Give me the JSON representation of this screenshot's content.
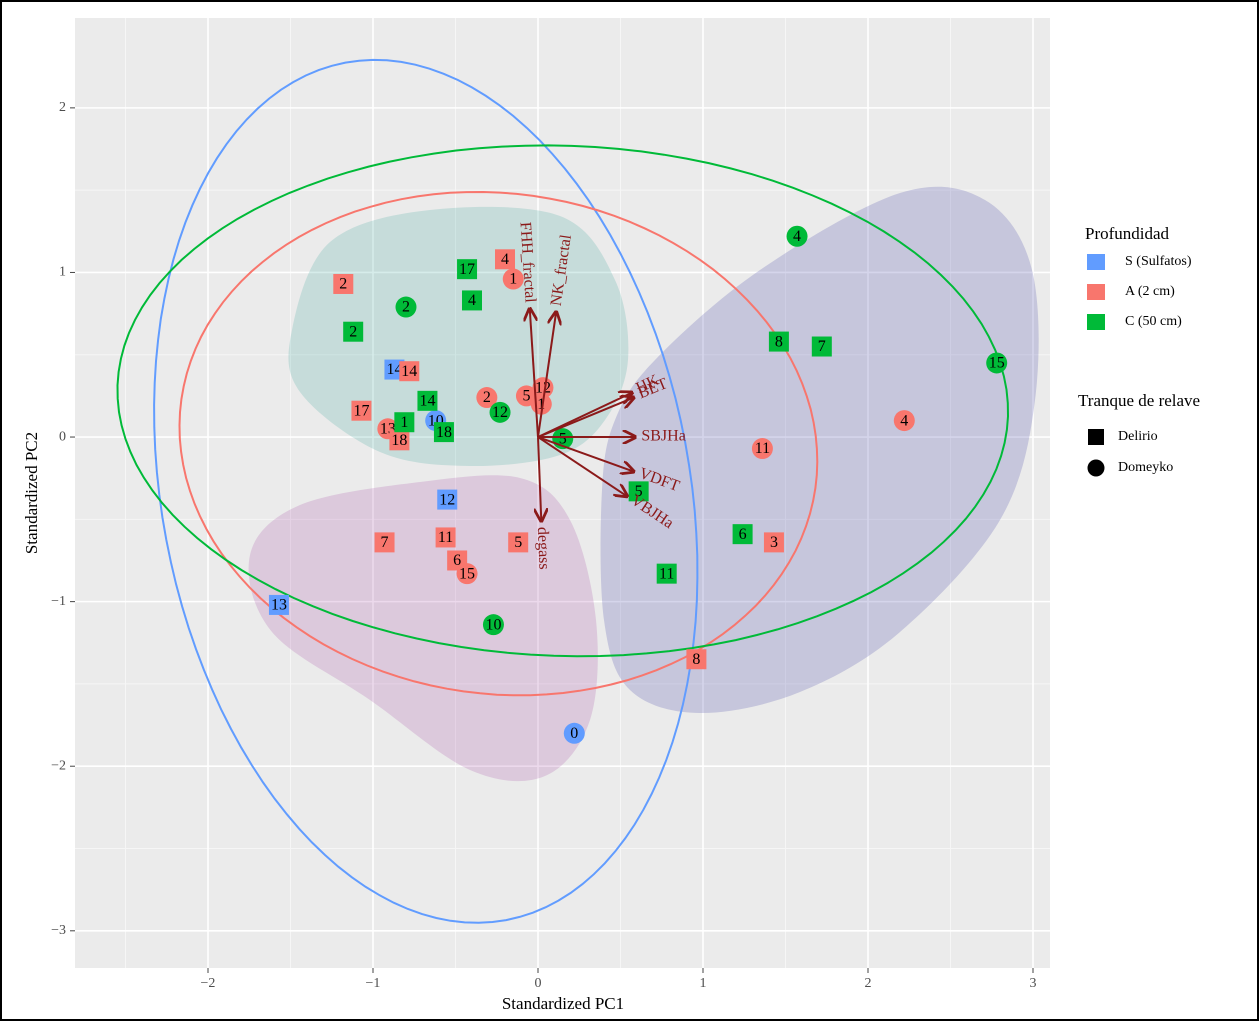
{
  "chart_data": {
    "type": "scatter",
    "xlabel": "Standardized PC1",
    "ylabel": "Standardized PC2",
    "xlim": [
      -2.806,
      3.103
    ],
    "ylim": [
      -3.226,
      2.546
    ],
    "xticks": [
      {
        "value": -2,
        "label": "−2"
      },
      {
        "value": -1,
        "label": "−1"
      },
      0,
      1,
      2,
      3
    ],
    "yticks": [
      {
        "value": -3,
        "label": "−3"
      },
      {
        "value": -2,
        "label": "−2"
      },
      {
        "value": -1,
        "label": "−1"
      },
      0,
      1,
      2
    ],
    "xminorticks": [
      -2.5,
      -1.5,
      -0.5,
      0.5,
      1.5,
      2.5
    ],
    "yminorticks": [
      -2.5,
      -1.5,
      -0.5,
      0.5,
      1.5
    ],
    "grid": true,
    "legend_title": "Profundidad",
    "shape_legend": {
      "title": "Tranque de relave",
      "items": [
        {
          "name": "Delirio",
          "shape": "square"
        },
        {
          "name": "Domeyko",
          "shape": "circle"
        }
      ]
    },
    "series": [
      {
        "name": "S (Sulfatos)",
        "color": "#619CFF",
        "x": [
          -0.87,
          -0.62,
          -0.55,
          -1.57,
          0.22
        ],
        "values": [
          0.41,
          0.1,
          -0.38,
          -1.02,
          -1.8
        ],
        "labels": [
          14,
          10,
          12,
          13,
          0
        ],
        "shapes": [
          "square",
          "circle",
          "square",
          "square",
          "circle"
        ],
        "ellipse": {
          "center": [
            -0.68,
            -0.33
          ],
          "radii": [
            2.65,
            1.6
          ],
          "angle": 100.6
        }
      },
      {
        "name": "A (2 cm)",
        "color": "#F8766D",
        "x": [
          -1.18,
          -0.2,
          -0.15,
          -0.78,
          -1.07,
          -0.91,
          -0.84,
          -0.31,
          -0.07,
          0.03,
          0.02,
          1.36,
          2.22,
          1.43,
          0.96,
          -0.93,
          -0.56,
          -0.49,
          -0.43,
          -0.12
        ],
        "values": [
          0.93,
          1.08,
          0.96,
          0.4,
          0.16,
          0.05,
          -0.02,
          0.24,
          0.25,
          0.3,
          0.2,
          -0.07,
          0.1,
          -0.64,
          -1.35,
          -0.64,
          -0.61,
          -0.75,
          -0.83,
          -0.64
        ],
        "labels": [
          2,
          4,
          1,
          14,
          17,
          13,
          18,
          2,
          5,
          12,
          1,
          11,
          4,
          3,
          8,
          7,
          11,
          6,
          15,
          5
        ],
        "shapes": [
          "square",
          "square",
          "circle",
          "square",
          "square",
          "circle",
          "square",
          "circle",
          "circle",
          "circle",
          "circle",
          "circle",
          "circle",
          "square",
          "square",
          "square",
          "square",
          "square",
          "circle",
          "square"
        ],
        "ellipse": {
          "center": [
            -0.24,
            -0.04
          ],
          "radii": [
            1.94,
            1.52
          ],
          "angle": -8
        }
      },
      {
        "name": "C (50 cm)",
        "color": "#00BA38",
        "x": [
          -0.43,
          -0.8,
          -0.4,
          -1.12,
          -0.67,
          -0.81,
          -0.57,
          -0.23,
          0.15,
          1.57,
          1.46,
          1.72,
          2.78,
          0.61,
          1.24,
          0.78,
          -0.27
        ],
        "values": [
          1.02,
          0.79,
          0.83,
          0.64,
          0.22,
          0.09,
          0.03,
          0.15,
          -0.01,
          1.22,
          0.58,
          0.55,
          0.45,
          -0.33,
          -0.59,
          -0.83,
          -1.14
        ],
        "labels": [
          17,
          2,
          4,
          2,
          14,
          1,
          18,
          12,
          5,
          4,
          8,
          7,
          15,
          5,
          6,
          11,
          10
        ],
        "shapes": [
          "square",
          "circle",
          "square",
          "square",
          "square",
          "square",
          "square",
          "circle",
          "circle",
          "circle",
          "square",
          "square",
          "circle",
          "square",
          "square",
          "square",
          "circle"
        ],
        "ellipse": {
          "center": [
            0.15,
            0.22
          ],
          "radii": [
            2.7,
            1.55
          ],
          "angle": -2
        }
      }
    ],
    "loadings": [
      {
        "name": "FHH_fractal",
        "x": -0.05,
        "y": 0.78
      },
      {
        "name": "NK_fractal",
        "x": 0.11,
        "y": 0.76
      },
      {
        "name": "HK",
        "x": 0.57,
        "y": 0.27
      },
      {
        "name": "BET",
        "x": 0.58,
        "y": 0.24
      },
      {
        "name": "SBJHa",
        "x": 0.59,
        "y": 0.0
      },
      {
        "name": "VDFT",
        "x": 0.58,
        "y": -0.21
      },
      {
        "name": "VBJHa",
        "x": 0.54,
        "y": -0.36
      },
      {
        "name": "degass",
        "x": 0.02,
        "y": -0.51
      }
    ],
    "loading_color": "#8B1A1A"
  }
}
